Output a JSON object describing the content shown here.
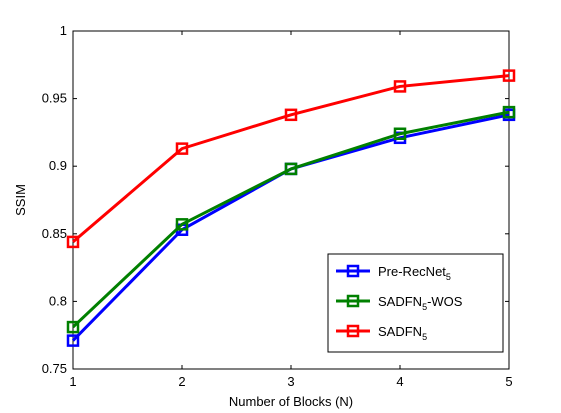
{
  "chart_data": {
    "type": "line",
    "title": "",
    "xlabel": "Number of Blocks (N)",
    "ylabel": "SSIM",
    "x": [
      1,
      2,
      3,
      4,
      5
    ],
    "xlim": [
      1,
      5
    ],
    "ylim": [
      0.75,
      1
    ],
    "xticks": [
      "1",
      "2",
      "3",
      "4",
      "5"
    ],
    "yticks": [
      "0.75",
      "0.8",
      "0.85",
      "0.9",
      "0.95",
      "1"
    ],
    "grid": false,
    "legend_position": "bottom-right",
    "series": [
      {
        "name": "Pre-RecNet",
        "subscript": "5",
        "suffix": "",
        "color": "#0000ff",
        "marker": "square",
        "values": [
          0.771,
          0.853,
          0.898,
          0.921,
          0.938
        ]
      },
      {
        "name": "SADFN",
        "subscript": "5",
        "suffix": "-WOS",
        "color": "#008000",
        "marker": "square",
        "values": [
          0.781,
          0.857,
          0.898,
          0.924,
          0.94
        ]
      },
      {
        "name": "SADFN",
        "subscript": "5",
        "suffix": "",
        "color": "#ff0000",
        "marker": "square",
        "values": [
          0.844,
          0.913,
          0.938,
          0.959,
          0.967
        ]
      }
    ]
  }
}
